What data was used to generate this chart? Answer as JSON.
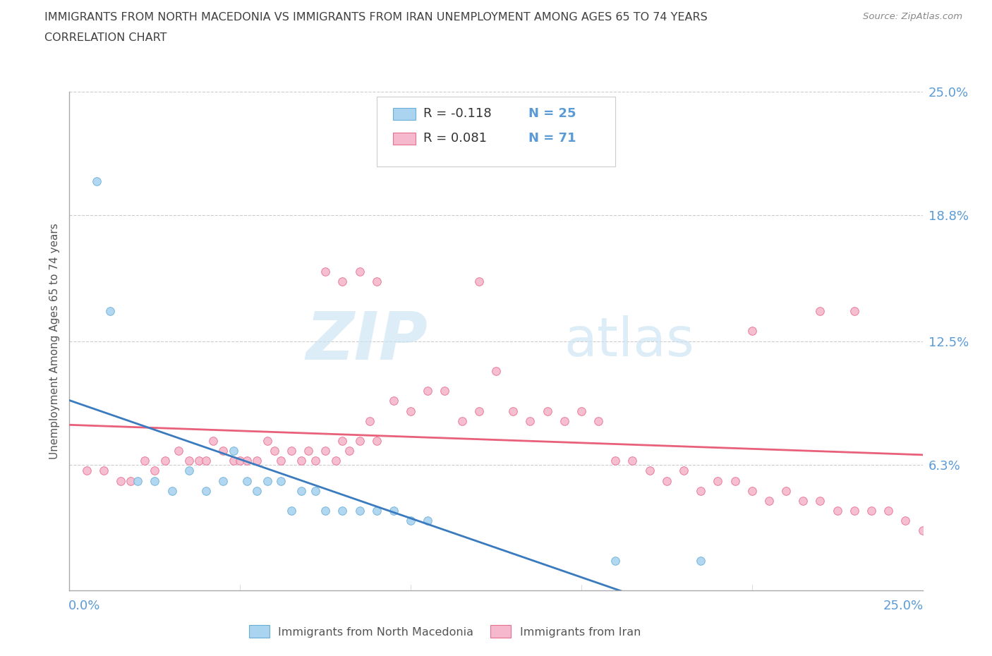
{
  "title_line1": "IMMIGRANTS FROM NORTH MACEDONIA VS IMMIGRANTS FROM IRAN UNEMPLOYMENT AMONG AGES 65 TO 74 YEARS",
  "title_line2": "CORRELATION CHART",
  "source_text": "Source: ZipAtlas.com",
  "ylabel": "Unemployment Among Ages 65 to 74 years",
  "ytick_vals": [
    0.063,
    0.125,
    0.188,
    0.25
  ],
  "ytick_labels": [
    "6.3%",
    "12.5%",
    "18.8%",
    "25.0%"
  ],
  "xlim": [
    0.0,
    0.25
  ],
  "ylim": [
    0.0,
    0.25
  ],
  "watermark_top": "ZIP",
  "watermark_bot": "atlas",
  "legend_r1": "R = -0.118",
  "legend_n1": "N = 25",
  "legend_r2": "R = 0.081",
  "legend_n2": "N = 71",
  "color_macedonia_fill": "#aad4f0",
  "color_macedonia_edge": "#6bafd6",
  "color_iran_fill": "#f5b8cc",
  "color_iran_edge": "#e87090",
  "color_trendline_macedonia": "#3a7bbf",
  "color_trendline_iran": "#e8607a",
  "color_axis_labels": "#5b9bd5",
  "color_title": "#404040",
  "color_source": "#888888",
  "color_grid": "#cccccc",
  "watermark_color": "#cce4f5",
  "macedonia_x": [
    0.008,
    0.012,
    0.02,
    0.025,
    0.03,
    0.035,
    0.04,
    0.045,
    0.048,
    0.052,
    0.055,
    0.058,
    0.062,
    0.065,
    0.068,
    0.072,
    0.075,
    0.08,
    0.085,
    0.09,
    0.095,
    0.1,
    0.105,
    0.16,
    0.185
  ],
  "macedonia_y": [
    0.205,
    0.14,
    0.055,
    0.055,
    0.05,
    0.06,
    0.05,
    0.055,
    0.07,
    0.055,
    0.05,
    0.055,
    0.055,
    0.04,
    0.05,
    0.05,
    0.04,
    0.04,
    0.04,
    0.04,
    0.04,
    0.035,
    0.035,
    0.015,
    0.015
  ],
  "iran_x": [
    0.005,
    0.01,
    0.015,
    0.018,
    0.022,
    0.025,
    0.028,
    0.032,
    0.035,
    0.038,
    0.04,
    0.042,
    0.045,
    0.048,
    0.05,
    0.052,
    0.055,
    0.058,
    0.06,
    0.062,
    0.065,
    0.068,
    0.07,
    0.072,
    0.075,
    0.078,
    0.08,
    0.082,
    0.085,
    0.088,
    0.09,
    0.095,
    0.1,
    0.105,
    0.11,
    0.115,
    0.12,
    0.125,
    0.13,
    0.135,
    0.14,
    0.145,
    0.15,
    0.155,
    0.16,
    0.165,
    0.17,
    0.175,
    0.18,
    0.185,
    0.19,
    0.195,
    0.2,
    0.205,
    0.21,
    0.215,
    0.22,
    0.225,
    0.23,
    0.235,
    0.24,
    0.245,
    0.25,
    0.075,
    0.08,
    0.085,
    0.09,
    0.12,
    0.2,
    0.22,
    0.23
  ],
  "iran_y": [
    0.06,
    0.06,
    0.055,
    0.055,
    0.065,
    0.06,
    0.065,
    0.07,
    0.065,
    0.065,
    0.065,
    0.075,
    0.07,
    0.065,
    0.065,
    0.065,
    0.065,
    0.075,
    0.07,
    0.065,
    0.07,
    0.065,
    0.07,
    0.065,
    0.07,
    0.065,
    0.075,
    0.07,
    0.075,
    0.085,
    0.075,
    0.095,
    0.09,
    0.1,
    0.1,
    0.085,
    0.09,
    0.11,
    0.09,
    0.085,
    0.09,
    0.085,
    0.09,
    0.085,
    0.065,
    0.065,
    0.06,
    0.055,
    0.06,
    0.05,
    0.055,
    0.055,
    0.05,
    0.045,
    0.05,
    0.045,
    0.045,
    0.04,
    0.04,
    0.04,
    0.04,
    0.035,
    0.03,
    0.16,
    0.155,
    0.16,
    0.155,
    0.155,
    0.13,
    0.14,
    0.14
  ]
}
